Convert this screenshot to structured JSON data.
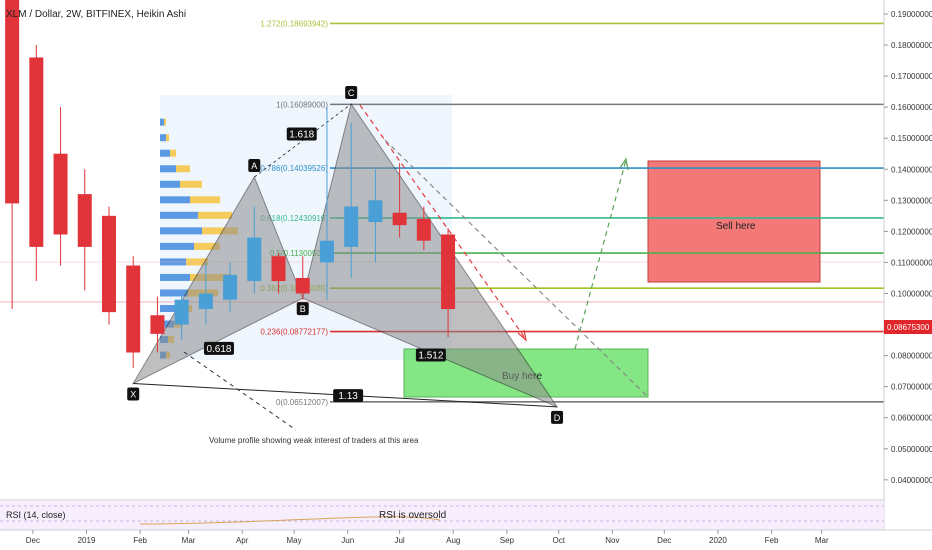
{
  "header": {
    "symbol_label": "XLM / Dollar, 2W, BITFINEX, Heikin Ashi"
  },
  "price_axis": {
    "ticks": [
      "0.19000000",
      "0.18000000",
      "0.17000000",
      "0.16000000",
      "0.15000000",
      "0.14000000",
      "0.13000000",
      "0.12000000",
      "0.11000000",
      "0.10000000",
      "0.09000000",
      "0.08000000",
      "0.07000000",
      "0.06000000",
      "0.05000000",
      "0.04000000"
    ],
    "last_price_label": "0.08675300",
    "last_price_color": "#e0262b"
  },
  "time_axis": {
    "labels": [
      "Dec",
      "2019",
      "Feb",
      "Mar",
      "Apr",
      "May",
      "Jun",
      "Jul",
      "Aug",
      "Sep",
      "Oct",
      "Nov",
      "Dec",
      "2020",
      "Feb",
      "Mar"
    ]
  },
  "fib_levels": [
    {
      "label": "1.272(0.18693942)",
      "price": 0.18693942,
      "color": "#a6c53c"
    },
    {
      "label": "1(0.16089000)",
      "price": 0.16089,
      "color": "#787878"
    },
    {
      "label": "0.786(0.14039526)",
      "price": 0.14039526,
      "color": "#2f8fc6"
    },
    {
      "label": "0.618(0.12430916)",
      "price": 0.12430916,
      "color": "#34b98a"
    },
    {
      "label": "0.5(0.11300500)",
      "price": 0.113005,
      "color": "#4caf50"
    },
    {
      "label": "0.382(0.10170085)",
      "price": 0.10170085,
      "color": "#9ac31c"
    },
    {
      "label": "0.236(0.08772177)",
      "price": 0.08772177,
      "color": "#d8302f"
    },
    {
      "label": "0(0.06512007)",
      "price": 0.06512007,
      "color": "#787878"
    }
  ],
  "pattern": {
    "points": [
      {
        "label": "X",
        "date": "2019-01-28",
        "price": 0.071
      },
      {
        "label": "A",
        "date": "2019-04-08",
        "price": 0.1375
      },
      {
        "label": "B",
        "date": "2019-05-06",
        "price": 0.0985
      },
      {
        "label": "C",
        "date": "2019-06-03",
        "price": 0.161
      },
      {
        "label": "D",
        "date": "2019-09-30",
        "price": 0.0635
      }
    ],
    "ratios": [
      "1.618",
      "0.618",
      "1.512",
      "1.13"
    ],
    "fill_color": "#8c8c8c"
  },
  "zones": {
    "sell_label": "Sell here",
    "buy_label": "Buy here",
    "sell_color": "#f26b6b",
    "buy_color": "#66e066"
  },
  "annotations": {
    "volume_note": "Volume profile showing weak interest of traders at this area"
  },
  "rsi": {
    "label": "RSI (14, close)",
    "note": "RSI is oversold"
  },
  "colors": {
    "up": "#4a9fd6",
    "down": "#e0343a",
    "panel_bg": "#f6eefc"
  },
  "chart_data": {
    "type": "candlestick",
    "chart_style": "Heikin Ashi",
    "interval": "2W",
    "y_scale": "linear",
    "ylim": [
      0.0335,
      0.1945
    ],
    "x_range": [
      "2018-11-12",
      "2020-04-06"
    ],
    "grid": false,
    "candles": [
      {
        "date": "2018-11-19",
        "open": 0.215,
        "high": 0.225,
        "low": 0.095,
        "close": 0.129,
        "dir": "down"
      },
      {
        "date": "2018-12-03",
        "open": 0.176,
        "high": 0.18,
        "low": 0.104,
        "close": 0.115,
        "dir": "down"
      },
      {
        "date": "2018-12-17",
        "open": 0.145,
        "high": 0.16,
        "low": 0.109,
        "close": 0.119,
        "dir": "down"
      },
      {
        "date": "2018-12-31",
        "open": 0.132,
        "high": 0.14,
        "low": 0.101,
        "close": 0.115,
        "dir": "down"
      },
      {
        "date": "2019-01-14",
        "open": 0.125,
        "high": 0.128,
        "low": 0.09,
        "close": 0.094,
        "dir": "down"
      },
      {
        "date": "2019-01-28",
        "open": 0.109,
        "high": 0.112,
        "low": 0.076,
        "close": 0.081,
        "dir": "down"
      },
      {
        "date": "2019-02-11",
        "open": 0.093,
        "high": 0.099,
        "low": 0.081,
        "close": 0.087,
        "dir": "down"
      },
      {
        "date": "2019-02-25",
        "open": 0.09,
        "high": 0.1,
        "low": 0.085,
        "close": 0.098,
        "dir": "up"
      },
      {
        "date": "2019-03-11",
        "open": 0.095,
        "high": 0.11,
        "low": 0.09,
        "close": 0.1,
        "dir": "up"
      },
      {
        "date": "2019-03-25",
        "open": 0.098,
        "high": 0.11,
        "low": 0.094,
        "close": 0.106,
        "dir": "up"
      },
      {
        "date": "2019-04-08",
        "open": 0.104,
        "high": 0.128,
        "low": 0.1,
        "close": 0.118,
        "dir": "up"
      },
      {
        "date": "2019-04-22",
        "open": 0.112,
        "high": 0.113,
        "low": 0.1,
        "close": 0.104,
        "dir": "down"
      },
      {
        "date": "2019-05-06",
        "open": 0.105,
        "high": 0.112,
        "low": 0.098,
        "close": 0.1,
        "dir": "down"
      },
      {
        "date": "2019-05-20",
        "open": 0.11,
        "high": 0.16,
        "low": 0.098,
        "close": 0.117,
        "dir": "up"
      },
      {
        "date": "2019-06-03",
        "open": 0.115,
        "high": 0.155,
        "low": 0.105,
        "close": 0.128,
        "dir": "up"
      },
      {
        "date": "2019-06-17",
        "open": 0.123,
        "high": 0.14,
        "low": 0.11,
        "close": 0.13,
        "dir": "up"
      },
      {
        "date": "2019-07-01",
        "open": 0.126,
        "high": 0.142,
        "low": 0.118,
        "close": 0.122,
        "dir": "down"
      },
      {
        "date": "2019-07-15",
        "open": 0.124,
        "high": 0.128,
        "low": 0.114,
        "close": 0.117,
        "dir": "down"
      },
      {
        "date": "2019-07-29",
        "open": 0.119,
        "high": 0.121,
        "low": 0.086,
        "close": 0.095,
        "dir": "down"
      }
    ]
  }
}
